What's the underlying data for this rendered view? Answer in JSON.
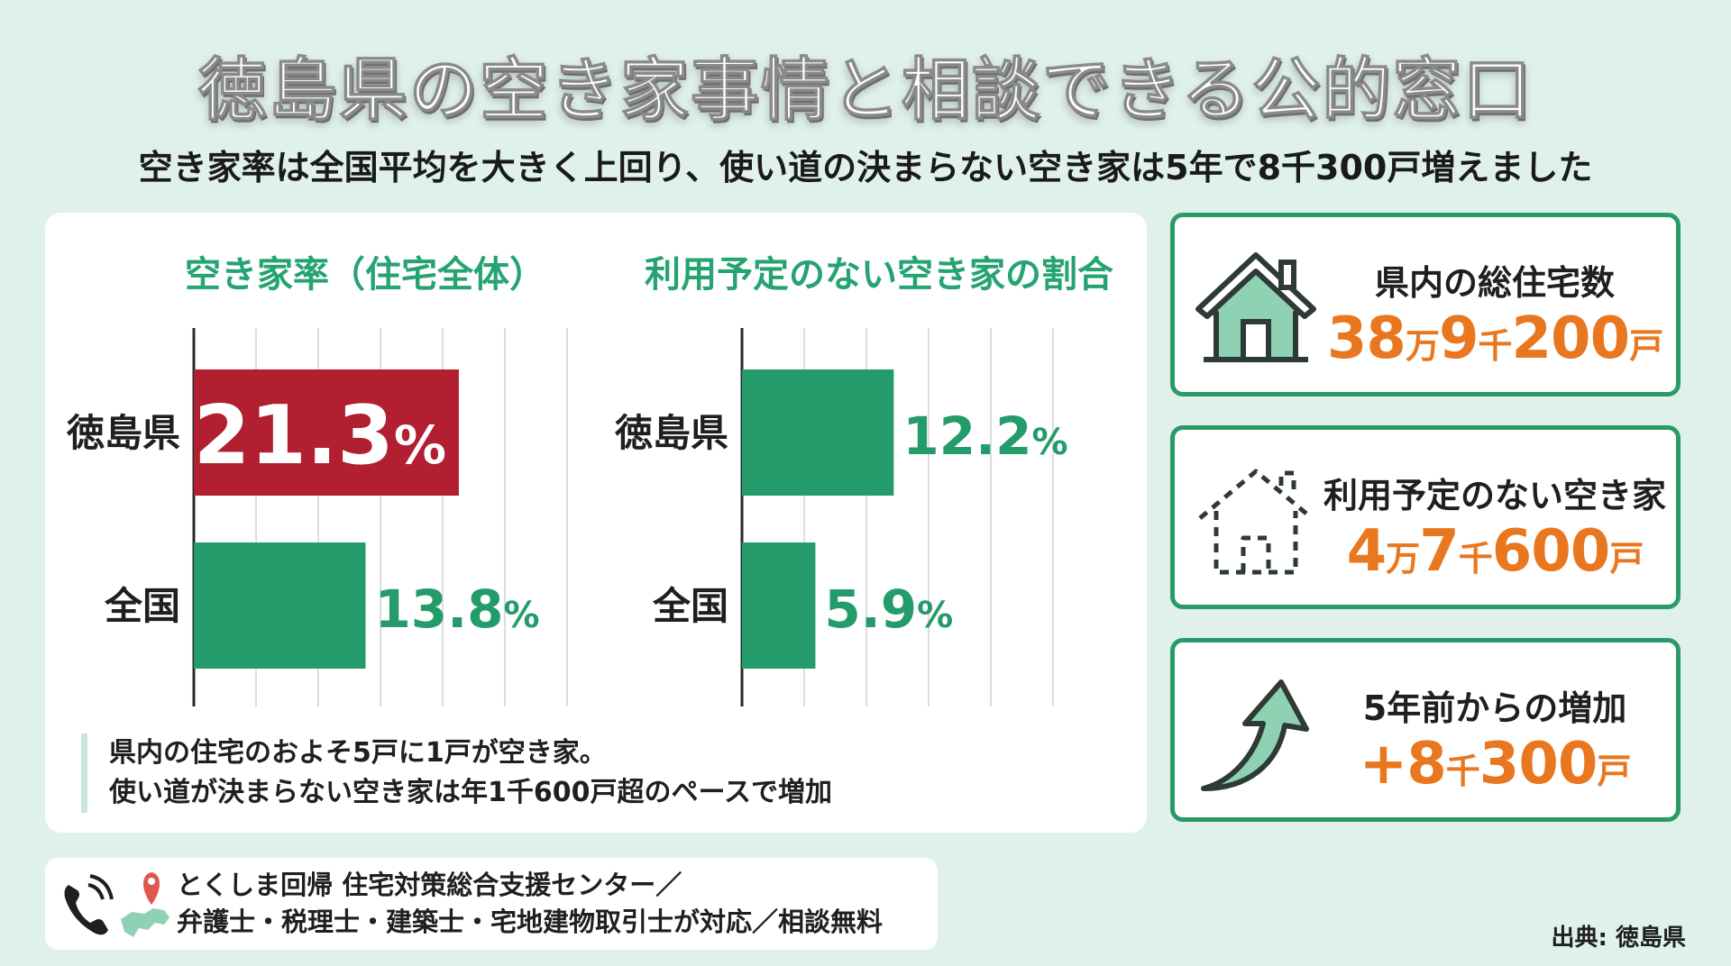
{
  "title": "徳島県の空き家事情と相談できる公的窓口",
  "subtitle": "空き家率は全国平均を大きく上回り、使い道の決まらない空き家は5年で8千300戸増えました",
  "colors": {
    "accent_red": "#b11f31",
    "accent_green": "#249b6b",
    "value_orange": "#e9771f",
    "title_green": "#26a373"
  },
  "chart_data": [
    {
      "type": "bar",
      "orientation": "horizontal",
      "title": "空き家率（住宅全体）",
      "categories": [
        "徳島県",
        "全国"
      ],
      "values": [
        21.3,
        13.8
      ],
      "value_labels": [
        "21.3%",
        "13.8%"
      ],
      "bar_colors": [
        "#b11f31",
        "#249b6b"
      ],
      "xlim": [
        0,
        35
      ],
      "grid": true
    },
    {
      "type": "bar",
      "orientation": "horizontal",
      "title": "利用予定のない空き家の割合",
      "categories": [
        "徳島県",
        "全国"
      ],
      "values": [
        12.2,
        5.9
      ],
      "value_labels": [
        "12.2%",
        "5.9%"
      ],
      "bar_colors": [
        "#249b6b",
        "#249b6b"
      ],
      "xlim": [
        0,
        35
      ],
      "grid": true
    }
  ],
  "note": {
    "line1": "県内の住宅のおよそ5戸に1戸が空き家。",
    "line2": "使い道が決まらない空き家は年1千600戸超のペースで増加"
  },
  "stats": [
    {
      "icon": "house-icon",
      "label": "県内の総住宅数",
      "value_parts": [
        "38",
        "万",
        "9",
        "千",
        "200",
        "戸"
      ]
    },
    {
      "icon": "vacant-house-icon",
      "label": "利用予定のない空き家",
      "value_parts": [
        "4",
        "万",
        "7",
        "千",
        "600",
        "戸"
      ]
    },
    {
      "icon": "up-arrow-icon",
      "label": "5年前からの増加",
      "value_parts": [
        "+8",
        "千",
        "300",
        "戸"
      ]
    }
  ],
  "contact": {
    "line1": "とくしま回帰 住宅対策総合支援センター／",
    "line2": "弁護士・税理士・建築士・宅地建物取引士が対応／相談無料"
  },
  "source": "出典: 徳島県"
}
